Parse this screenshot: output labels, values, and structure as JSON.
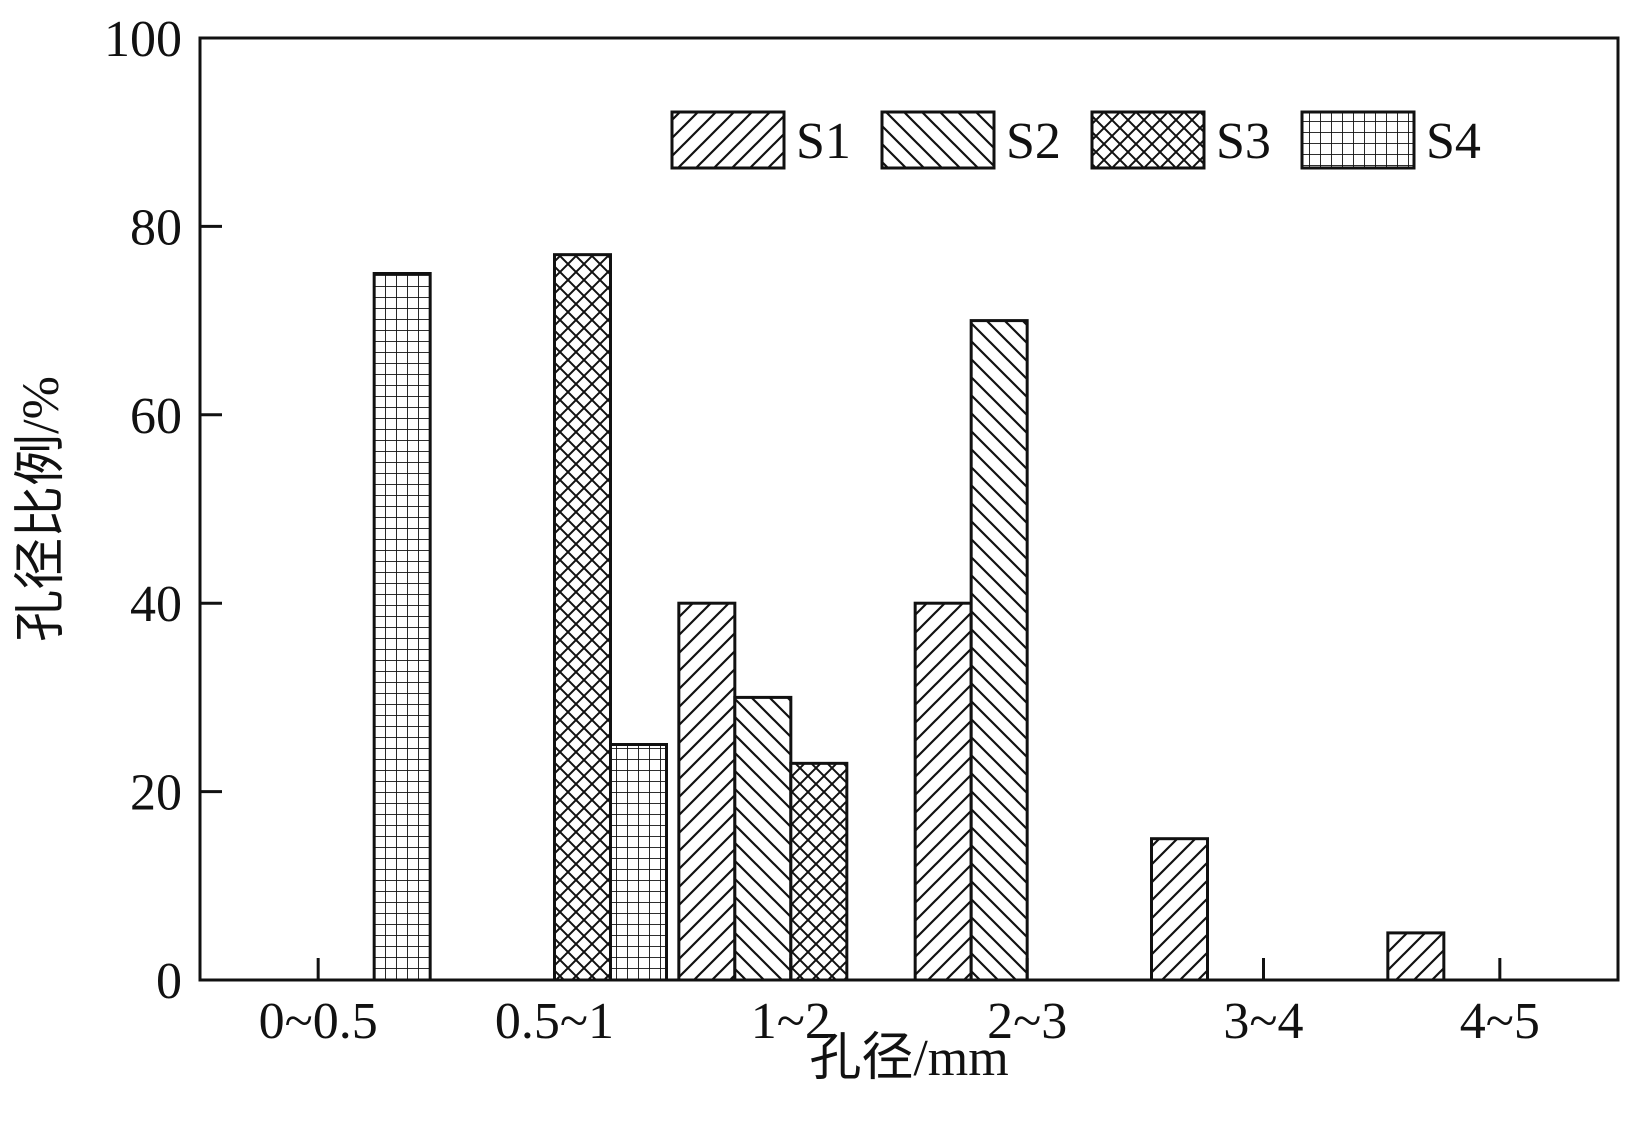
{
  "chart_data": {
    "type": "bar",
    "xlabel": "孔径/mm",
    "ylabel": "孔径比例/%",
    "categories": [
      "0~0.5",
      "0.5~1",
      "1~2",
      "2~3",
      "3~4",
      "4~5"
    ],
    "ylim": [
      0,
      100
    ],
    "yticks": [
      0,
      20,
      40,
      60,
      80,
      100
    ],
    "grid": false,
    "legend_position": "top-right",
    "series": [
      {
        "name": "S1",
        "pattern": "diagonal-up",
        "values": [
          0,
          0,
          40,
          40,
          15,
          5
        ]
      },
      {
        "name": "S2",
        "pattern": "diagonal-down",
        "values": [
          0,
          0,
          30,
          70,
          0,
          0
        ]
      },
      {
        "name": "S3",
        "pattern": "crosshatch",
        "values": [
          0,
          77,
          23,
          0,
          0,
          0
        ]
      },
      {
        "name": "S4",
        "pattern": "grid",
        "values": [
          75,
          25,
          0,
          0,
          0,
          0
        ]
      }
    ],
    "colors": {
      "stroke": "#111111",
      "background": "#ffffff"
    }
  }
}
